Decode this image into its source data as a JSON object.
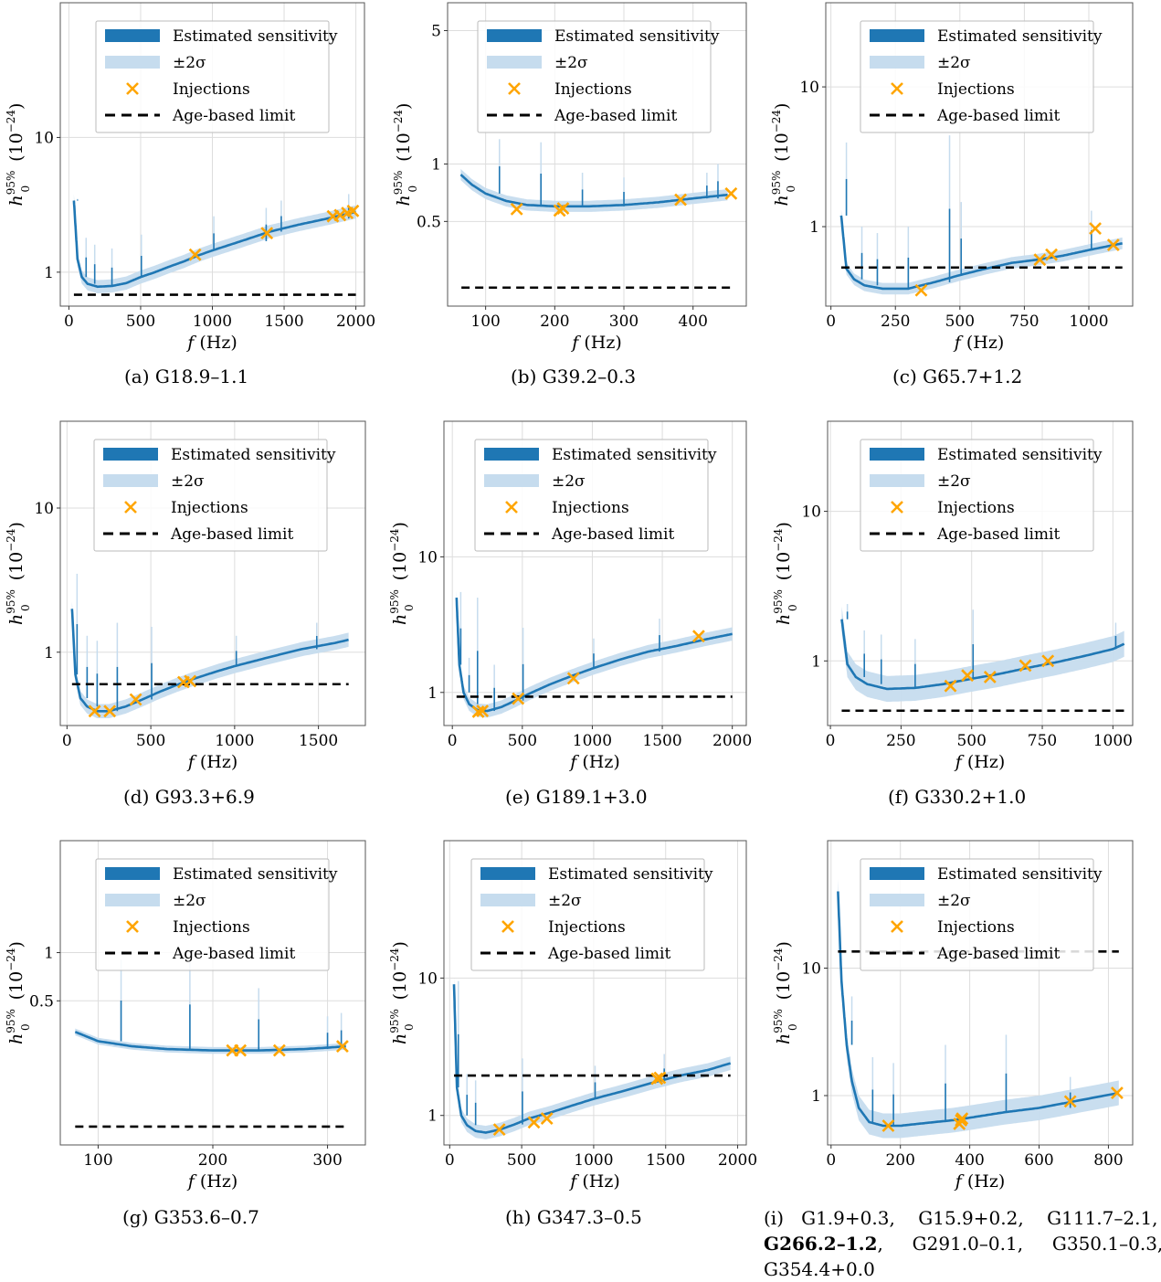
{
  "figure": {
    "legend": {
      "estimated": "Estimated sensitivity",
      "band": "±2σ",
      "injections": "Injections",
      "age": "Age-based limit"
    },
    "colors": {
      "line": "#1f77b4",
      "band": "#c6dcee",
      "injection": "#ffa500",
      "age": "#000000",
      "grid": "#dddddd"
    },
    "caption_i": {
      "prefix": "(i)",
      "items": [
        "G1.9+0.3,",
        "G15.9+0.2,",
        "G111.7–2.1,",
        "G266.2–1.2",
        ",",
        "G291.0–0.1,",
        "G350.1–0.3,",
        "G354.4+0.0"
      ]
    }
  },
  "chart_data": [
    {
      "caption": "(a)  G18.9–1.1",
      "type": "line",
      "xlabel": "f (Hz)",
      "ylabel": "h0^95% (10^-24)",
      "scale_y": "log",
      "xlim": [
        -60,
        2060
      ],
      "ylim": [
        0.56,
        100
      ],
      "xticks": [
        0,
        500,
        1000,
        1500,
        2000
      ],
      "yticks": [
        1,
        10
      ],
      "yticklabels": [
        "1",
        "10"
      ],
      "grid": true,
      "legend_position": "upper-center",
      "sensitivity": {
        "x": [
          35,
          60,
          90,
          130,
          200,
          300,
          400,
          500,
          600,
          700,
          800,
          900,
          1000,
          1200,
          1400,
          1600,
          1800,
          2000
        ],
        "y": [
          3.4,
          1.25,
          0.92,
          0.82,
          0.78,
          0.79,
          0.83,
          0.92,
          1.0,
          1.1,
          1.2,
          1.33,
          1.45,
          1.7,
          2.0,
          2.25,
          2.5,
          2.8
        ]
      },
      "spikes": [
        {
          "x": 60,
          "y": 3.5
        },
        {
          "x": 120,
          "y": 1.8
        },
        {
          "x": 180,
          "y": 1.6
        },
        {
          "x": 300,
          "y": 1.5
        },
        {
          "x": 505,
          "y": 1.9
        },
        {
          "x": 1010,
          "y": 2.6
        },
        {
          "x": 1375,
          "y": 3.0
        },
        {
          "x": 1480,
          "y": 3.4
        },
        {
          "x": 1950,
          "y": 3.8
        }
      ],
      "band_factor": 1.12,
      "injections": {
        "x": [
          880,
          1380,
          1840,
          1890,
          1940,
          1980
        ],
        "y": [
          1.35,
          1.95,
          2.6,
          2.65,
          2.75,
          2.85
        ]
      },
      "age_limit": {
        "x": [
          35,
          2000
        ],
        "y": 0.68
      }
    },
    {
      "caption": "(b)  G39.2–0.3",
      "type": "line",
      "xlabel": "f (Hz)",
      "ylabel": "h0^95% (10^-24)",
      "scale_y": "log",
      "xlim": [
        45,
        477
      ],
      "ylim": [
        0.18,
        7
      ],
      "xticks": [
        100,
        200,
        300,
        400
      ],
      "yticks": [
        0.5,
        1,
        5
      ],
      "yticklabels": [
        "0.5",
        "1",
        "5"
      ],
      "grid": true,
      "legend_position": "upper-center",
      "sensitivity": {
        "x": [
          64,
          80,
          100,
          130,
          160,
          200,
          250,
          300,
          350,
          400,
          450
        ],
        "y": [
          0.88,
          0.78,
          0.7,
          0.64,
          0.61,
          0.6,
          0.6,
          0.61,
          0.63,
          0.66,
          0.69
        ]
      },
      "spikes": [
        {
          "x": 120,
          "y": 1.35
        },
        {
          "x": 180,
          "y": 1.3
        },
        {
          "x": 240,
          "y": 0.9
        },
        {
          "x": 300,
          "y": 0.85
        },
        {
          "x": 420,
          "y": 0.9
        },
        {
          "x": 436,
          "y": 1.0
        }
      ],
      "band_factor": 1.07,
      "injections": {
        "x": [
          145,
          207,
          212,
          382,
          455
        ],
        "y": [
          0.58,
          0.57,
          0.585,
          0.65,
          0.7
        ]
      },
      "age_limit": {
        "x": [
          65,
          455
        ],
        "y": 0.225
      }
    },
    {
      "caption": "(c)  G65.7+1.2",
      "type": "line",
      "xlabel": "f (Hz)",
      "ylabel": "h0^95% (10^-24)",
      "scale_y": "log",
      "xlim": [
        -20,
        1170
      ],
      "ylim": [
        0.27,
        40
      ],
      "xticks": [
        0,
        250,
        500,
        750,
        1000
      ],
      "yticks": [
        1,
        10
      ],
      "yticklabels": [
        "1",
        "10"
      ],
      "grid": true,
      "legend_position": "upper-center",
      "sensitivity": {
        "x": [
          40,
          60,
          90,
          130,
          200,
          300,
          400,
          500,
          600,
          700,
          800,
          900,
          1000,
          1130
        ],
        "y": [
          1.2,
          0.5,
          0.42,
          0.38,
          0.36,
          0.36,
          0.4,
          0.45,
          0.5,
          0.55,
          0.58,
          0.62,
          0.68,
          0.76
        ]
      },
      "spikes": [
        {
          "x": 60,
          "y": 4.0
        },
        {
          "x": 120,
          "y": 1.0
        },
        {
          "x": 180,
          "y": 0.9
        },
        {
          "x": 300,
          "y": 1.0
        },
        {
          "x": 460,
          "y": 4.5
        },
        {
          "x": 505,
          "y": 1.5
        },
        {
          "x": 1010,
          "y": 1.3
        }
      ],
      "band_factor": 1.1,
      "injections": {
        "x": [
          350,
          810,
          855,
          1025,
          1095
        ],
        "y": [
          0.35,
          0.58,
          0.63,
          0.97,
          0.74
        ]
      },
      "age_limit": {
        "x": [
          40,
          1130
        ],
        "y": 0.51
      }
    },
    {
      "caption": "(d)  G93.3+6.9",
      "type": "line",
      "xlabel": "f (Hz)",
      "ylabel": "h0^95% (10^-24)",
      "scale_y": "log",
      "xlim": [
        -40,
        1780
      ],
      "ylim": [
        0.31,
        40
      ],
      "xticks": [
        0,
        500,
        1000,
        1500
      ],
      "yticks": [
        1,
        10
      ],
      "yticklabels": [
        "1",
        "10"
      ],
      "grid": true,
      "legend_position": "upper-center",
      "sensitivity": {
        "x": [
          30,
          50,
          80,
          120,
          180,
          250,
          350,
          450,
          550,
          650,
          750,
          900,
          1000,
          1200,
          1400,
          1600,
          1680
        ],
        "y": [
          2.0,
          0.7,
          0.48,
          0.42,
          0.39,
          0.39,
          0.42,
          0.47,
          0.53,
          0.59,
          0.65,
          0.74,
          0.8,
          0.92,
          1.05,
          1.16,
          1.22
        ]
      },
      "spikes": [
        {
          "x": 60,
          "y": 3.5
        },
        {
          "x": 120,
          "y": 1.3
        },
        {
          "x": 180,
          "y": 1.2
        },
        {
          "x": 300,
          "y": 1.6
        },
        {
          "x": 505,
          "y": 1.5
        },
        {
          "x": 1010,
          "y": 1.3
        },
        {
          "x": 1490,
          "y": 1.6
        }
      ],
      "band_factor": 1.12,
      "injections": {
        "x": [
          165,
          255,
          410,
          695,
          735
        ],
        "y": [
          0.39,
          0.39,
          0.47,
          0.62,
          0.63
        ]
      },
      "age_limit": {
        "x": [
          30,
          1680
        ],
        "y": 0.6
      }
    },
    {
      "caption": "(e)  G189.1+3.0",
      "type": "line",
      "xlabel": "f (Hz)",
      "ylabel": "h0^95% (10^-24)",
      "scale_y": "log",
      "xlim": [
        -60,
        2100
      ],
      "ylim": [
        0.57,
        100
      ],
      "xticks": [
        0,
        500,
        1000,
        1500,
        2000
      ],
      "yticks": [
        1,
        10
      ],
      "yticklabels": [
        "1",
        "10"
      ],
      "grid": true,
      "legend_position": "upper-center",
      "sensitivity": {
        "x": [
          30,
          50,
          80,
          120,
          180,
          250,
          350,
          450,
          550,
          700,
          850,
          1000,
          1200,
          1400,
          1600,
          1800,
          2000
        ],
        "y": [
          5.0,
          1.6,
          1.0,
          0.82,
          0.74,
          0.73,
          0.78,
          0.87,
          0.98,
          1.15,
          1.32,
          1.5,
          1.75,
          2.0,
          2.2,
          2.45,
          2.7
        ]
      },
      "spikes": [
        {
          "x": 60,
          "y": 5.5
        },
        {
          "x": 120,
          "y": 1.8
        },
        {
          "x": 180,
          "y": 5.0
        },
        {
          "x": 300,
          "y": 1.6
        },
        {
          "x": 505,
          "y": 3.0
        },
        {
          "x": 1010,
          "y": 2.5
        },
        {
          "x": 1480,
          "y": 3.5
        }
      ],
      "band_factor": 1.12,
      "injections": {
        "x": [
          185,
          215,
          470,
          865,
          1760
        ],
        "y": [
          0.72,
          0.73,
          0.9,
          1.27,
          2.6
        ]
      },
      "age_limit": {
        "x": [
          30,
          2000
        ],
        "y": 0.93
      }
    },
    {
      "caption": "(f)  G330.2+1.0",
      "type": "line",
      "xlabel": "f (Hz)",
      "ylabel": "h0^95% (10^-24)",
      "scale_y": "log",
      "xlim": [
        -10,
        1070
      ],
      "ylim": [
        0.37,
        40
      ],
      "xticks": [
        0,
        250,
        500,
        750,
        1000
      ],
      "yticks": [
        1,
        10
      ],
      "yticklabels": [
        "1",
        "10"
      ],
      "grid": true,
      "legend_position": "upper-center",
      "sensitivity": {
        "x": [
          40,
          60,
          90,
          130,
          200,
          300,
          400,
          500,
          600,
          700,
          800,
          900,
          1000,
          1040
        ],
        "y": [
          1.9,
          0.95,
          0.78,
          0.7,
          0.65,
          0.66,
          0.7,
          0.76,
          0.82,
          0.9,
          0.98,
          1.08,
          1.2,
          1.3
        ]
      },
      "spikes": [
        {
          "x": 60,
          "y": 2.4
        },
        {
          "x": 120,
          "y": 1.6
        },
        {
          "x": 180,
          "y": 1.5
        },
        {
          "x": 300,
          "y": 1.4
        },
        {
          "x": 505,
          "y": 2.2
        },
        {
          "x": 1010,
          "y": 1.8
        }
      ],
      "band_factor": 1.22,
      "injections": {
        "x": [
          425,
          485,
          565,
          690,
          770
        ],
        "y": [
          0.68,
          0.8,
          0.78,
          0.93,
          1.0
        ]
      },
      "age_limit": {
        "x": [
          40,
          1040
        ],
        "y": 0.465
      }
    },
    {
      "caption": "(g)  G353.6–0.7",
      "type": "line",
      "xlabel": "f (Hz)",
      "ylabel": "h0^95% (10^-24)",
      "scale_y": "log",
      "xlim": [
        67,
        333
      ],
      "ylim": [
        0.063,
        5
      ],
      "xticks": [
        100,
        200,
        300
      ],
      "yticks": [
        0.5,
        1
      ],
      "yticklabels": [
        "0.5",
        "1"
      ],
      "grid": true,
      "legend_position": "upper-center",
      "sensitivity": {
        "x": [
          80,
          100,
          130,
          160,
          200,
          240,
          280,
          300,
          316
        ],
        "y": [
          0.32,
          0.28,
          0.26,
          0.25,
          0.245,
          0.245,
          0.25,
          0.255,
          0.26
        ]
      },
      "spikes": [
        {
          "x": 120,
          "y": 0.9
        },
        {
          "x": 180,
          "y": 0.9
        },
        {
          "x": 240,
          "y": 0.6
        },
        {
          "x": 300,
          "y": 0.4
        },
        {
          "x": 312,
          "y": 0.42
        }
      ],
      "band_factor": 1.05,
      "injections": {
        "x": [
          217,
          224,
          258,
          313
        ],
        "y": [
          0.245,
          0.245,
          0.245,
          0.26
        ]
      },
      "age_limit": {
        "x": [
          80,
          316
        ],
        "y": 0.082
      }
    },
    {
      "caption": "(h)  G347.3–0.5",
      "type": "line",
      "xlabel": "f (Hz)",
      "ylabel": "h0^95% (10^-24)",
      "scale_y": "log",
      "xlim": [
        -40,
        2060
      ],
      "ylim": [
        0.61,
        100
      ],
      "xticks": [
        0,
        500,
        1000,
        1500,
        2000
      ],
      "yticks": [
        1,
        10
      ],
      "yticklabels": [
        "1",
        "10"
      ],
      "grid": true,
      "legend_position": "upper-center",
      "sensitivity": {
        "x": [
          30,
          50,
          80,
          120,
          180,
          250,
          350,
          450,
          550,
          700,
          850,
          1000,
          1200,
          1400,
          1600,
          1800,
          1950
        ],
        "y": [
          9.0,
          1.6,
          1.0,
          0.85,
          0.77,
          0.75,
          0.79,
          0.86,
          0.95,
          1.05,
          1.18,
          1.32,
          1.5,
          1.72,
          1.95,
          2.15,
          2.4
        ]
      },
      "spikes": [
        {
          "x": 60,
          "y": 9.5
        },
        {
          "x": 120,
          "y": 2.0
        },
        {
          "x": 180,
          "y": 1.8
        },
        {
          "x": 505,
          "y": 2.6
        },
        {
          "x": 1010,
          "y": 2.3
        },
        {
          "x": 1490,
          "y": 2.8
        }
      ],
      "band_factor": 1.12,
      "injections": {
        "x": [
          345,
          585,
          675,
          1440,
          1460
        ],
        "y": [
          0.79,
          0.89,
          0.95,
          1.85,
          1.88
        ]
      },
      "age_limit": {
        "x": [
          30,
          1950
        ],
        "y": 1.95
      }
    },
    {
      "caption": "",
      "type": "line",
      "xlabel": "f (Hz)",
      "ylabel": "h0^95% (10^-24)",
      "scale_y": "log",
      "xlim": [
        -10,
        870
      ],
      "ylim": [
        0.41,
        100
      ],
      "xticks": [
        0,
        200,
        400,
        600,
        800
      ],
      "yticks": [
        1,
        10
      ],
      "yticklabels": [
        "1",
        "10"
      ],
      "grid": true,
      "legend_position": "upper-center",
      "sensitivity": {
        "x": [
          20,
          30,
          45,
          60,
          80,
          110,
          150,
          200,
          250,
          300,
          350,
          400,
          500,
          600,
          700,
          830
        ],
        "y": [
          40,
          8.0,
          2.5,
          1.3,
          0.8,
          0.62,
          0.58,
          0.58,
          0.6,
          0.62,
          0.64,
          0.67,
          0.74,
          0.8,
          0.9,
          1.05
        ]
      },
      "spikes": [
        {
          "x": 60,
          "y": 6.0
        },
        {
          "x": 120,
          "y": 2.0
        },
        {
          "x": 180,
          "y": 1.8
        },
        {
          "x": 330,
          "y": 2.5
        },
        {
          "x": 505,
          "y": 3.0
        },
        {
          "x": 690,
          "y": 1.4
        }
      ],
      "band_factor": 1.25,
      "injections": {
        "x": [
          165,
          370,
          375,
          378,
          690,
          825
        ],
        "y": [
          0.58,
          0.6,
          0.64,
          0.66,
          0.9,
          1.05
        ]
      },
      "age_limit": {
        "x": [
          20,
          830
        ],
        "y": 13.5
      }
    }
  ]
}
